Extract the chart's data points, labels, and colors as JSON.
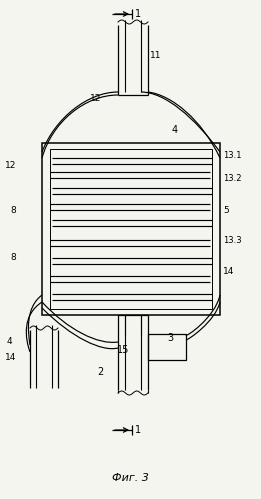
{
  "title": "Фиг. 3",
  "bg_color": "#f5f5f0",
  "figsize": [
    2.61,
    4.99
  ],
  "dpi": 100
}
